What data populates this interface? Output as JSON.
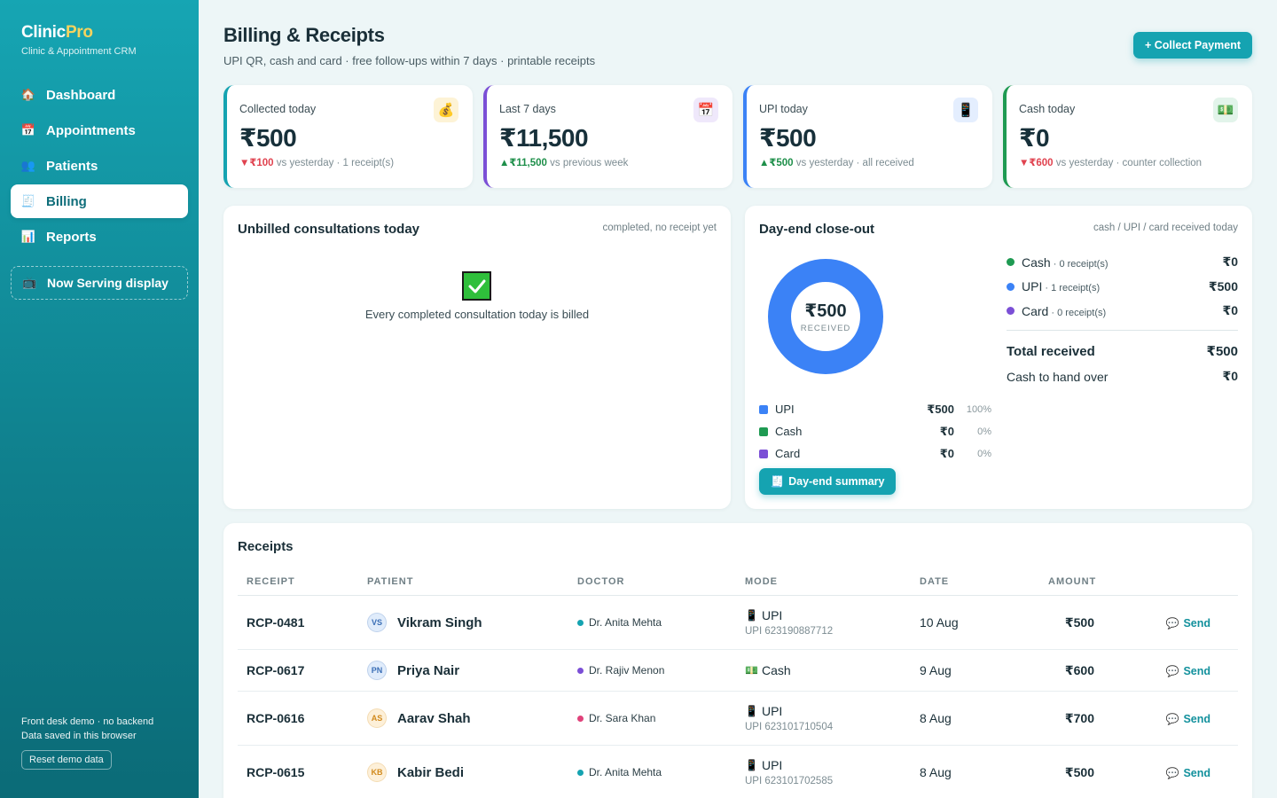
{
  "brand": {
    "name_main": "Clinic",
    "name_accent": "Pro",
    "subtitle": "Clinic & Appointment CRM"
  },
  "nav": [
    {
      "label": "Dashboard",
      "icon": "home-icon",
      "glyph": "🏠"
    },
    {
      "label": "Appointments",
      "icon": "calendar-icon",
      "glyph": "📅"
    },
    {
      "label": "Patients",
      "icon": "users-icon",
      "glyph": "👥"
    },
    {
      "label": "Billing",
      "icon": "receipt-icon",
      "glyph": "🧾",
      "active": true
    },
    {
      "label": "Reports",
      "icon": "bar-chart-icon",
      "glyph": "📊"
    }
  ],
  "serving": {
    "label": "Now Serving display",
    "icon": "tv-icon"
  },
  "footer": {
    "line1": "Front desk demo · no backend",
    "line2": "Data saved in this browser",
    "reset_label": "Reset demo data"
  },
  "header": {
    "title": "Billing & Receipts",
    "subtitle": "UPI QR, cash and card · free follow-ups within 7 days · printable receipts",
    "collect_label": "+ Collect Payment"
  },
  "kpis": [
    {
      "label": "Collected today",
      "value": "₹500",
      "delta": "₹100",
      "delta_dir": "down",
      "delta_text": " vs yesterday · 1 receipt(s)",
      "icon": "money-bag-icon",
      "color": "#15a3b1",
      "icon_bg": "#fdf3d6"
    },
    {
      "label": "Last 7 days",
      "value": "₹11,500",
      "delta": "₹11,500",
      "delta_dir": "up",
      "delta_text": " vs previous week",
      "icon": "calendar-icon",
      "color": "#7b4fd6",
      "icon_bg": "#efe8fb"
    },
    {
      "label": "UPI today",
      "value": "₹500",
      "delta": "₹500",
      "delta_dir": "up",
      "delta_text": " vs yesterday · all received",
      "icon": "phone-icon",
      "color": "#3b82f6",
      "icon_bg": "#e4eefe"
    },
    {
      "label": "Cash today",
      "value": "₹0",
      "delta": "₹600",
      "delta_dir": "down",
      "delta_text": " vs yesterday · counter collection",
      "icon": "cash-icon",
      "color": "#1e9a52",
      "icon_bg": "#e2f4ea"
    }
  ],
  "unbilled": {
    "title": "Unbilled consultations today",
    "hint": "completed, no receipt yet",
    "empty_message": "Every completed consultation today is billed"
  },
  "dayend": {
    "title": "Day-end close-out",
    "hint": "cash / UPI / card received today",
    "donut_value": "₹500",
    "donut_label": "RECEIVED",
    "legend": [
      {
        "name": "UPI",
        "amount": "₹500",
        "pct": "100%",
        "color": "#3b82f6"
      },
      {
        "name": "Cash",
        "amount": "₹0",
        "pct": "0%",
        "color": "#1e9a52"
      },
      {
        "name": "Card",
        "amount": "₹0",
        "pct": "0%",
        "color": "#7b4fd6"
      }
    ],
    "modes": [
      {
        "name": "Cash",
        "count": " · 0 receipt(s)",
        "amount": "₹0",
        "color": "#1e9a52"
      },
      {
        "name": "UPI",
        "count": " · 1 receipt(s)",
        "amount": "₹500",
        "color": "#3b82f6"
      },
      {
        "name": "Card",
        "count": " · 0 receipt(s)",
        "amount": "₹0",
        "color": "#7b4fd6"
      }
    ],
    "total_label": "Total received",
    "total_value": "₹500",
    "hand_label": "Cash to hand over",
    "hand_value": "₹0",
    "button_label": "Day-end summary"
  },
  "receipts": {
    "title": "Receipts",
    "columns": [
      "RECEIPT",
      "PATIENT",
      "DOCTOR",
      "MODE",
      "DATE",
      "AMOUNT"
    ],
    "rows": [
      {
        "id": "RCP-0481",
        "initials": "VS",
        "patient": "Vikram Singh",
        "avatar_bg": "#e0ecfb",
        "avatar_fg": "#3b6fb6",
        "doctor": "Dr. Anita Mehta",
        "doc_color": "#15a3b1",
        "mode": "UPI",
        "mode_icon": "phone-icon",
        "ref": "UPI 623190887712",
        "date": "10 Aug",
        "amount": "₹500",
        "action": "Send"
      },
      {
        "id": "RCP-0617",
        "initials": "PN",
        "patient": "Priya Nair",
        "avatar_bg": "#e0ecfb",
        "avatar_fg": "#3b6fb6",
        "doctor": "Dr. Rajiv Menon",
        "doc_color": "#7b4fd6",
        "mode": "Cash",
        "mode_icon": "cash-icon",
        "ref": "",
        "date": "9 Aug",
        "amount": "₹600",
        "action": "Send"
      },
      {
        "id": "RCP-0616",
        "initials": "AS",
        "patient": "Aarav Shah",
        "avatar_bg": "#fdf0d9",
        "avatar_fg": "#d18a1e",
        "doctor": "Dr. Sara Khan",
        "doc_color": "#e0427a",
        "mode": "UPI",
        "mode_icon": "phone-icon",
        "ref": "UPI 623101710504",
        "date": "8 Aug",
        "amount": "₹700",
        "action": "Send"
      },
      {
        "id": "RCP-0615",
        "initials": "KB",
        "patient": "Kabir Bedi",
        "avatar_bg": "#fdf0d9",
        "avatar_fg": "#d18a1e",
        "doctor": "Dr. Anita Mehta",
        "doc_color": "#15a3b1",
        "mode": "UPI",
        "mode_icon": "phone-icon",
        "ref": "UPI 623101702585",
        "date": "8 Aug",
        "amount": "₹500",
        "action": "Send"
      }
    ]
  }
}
